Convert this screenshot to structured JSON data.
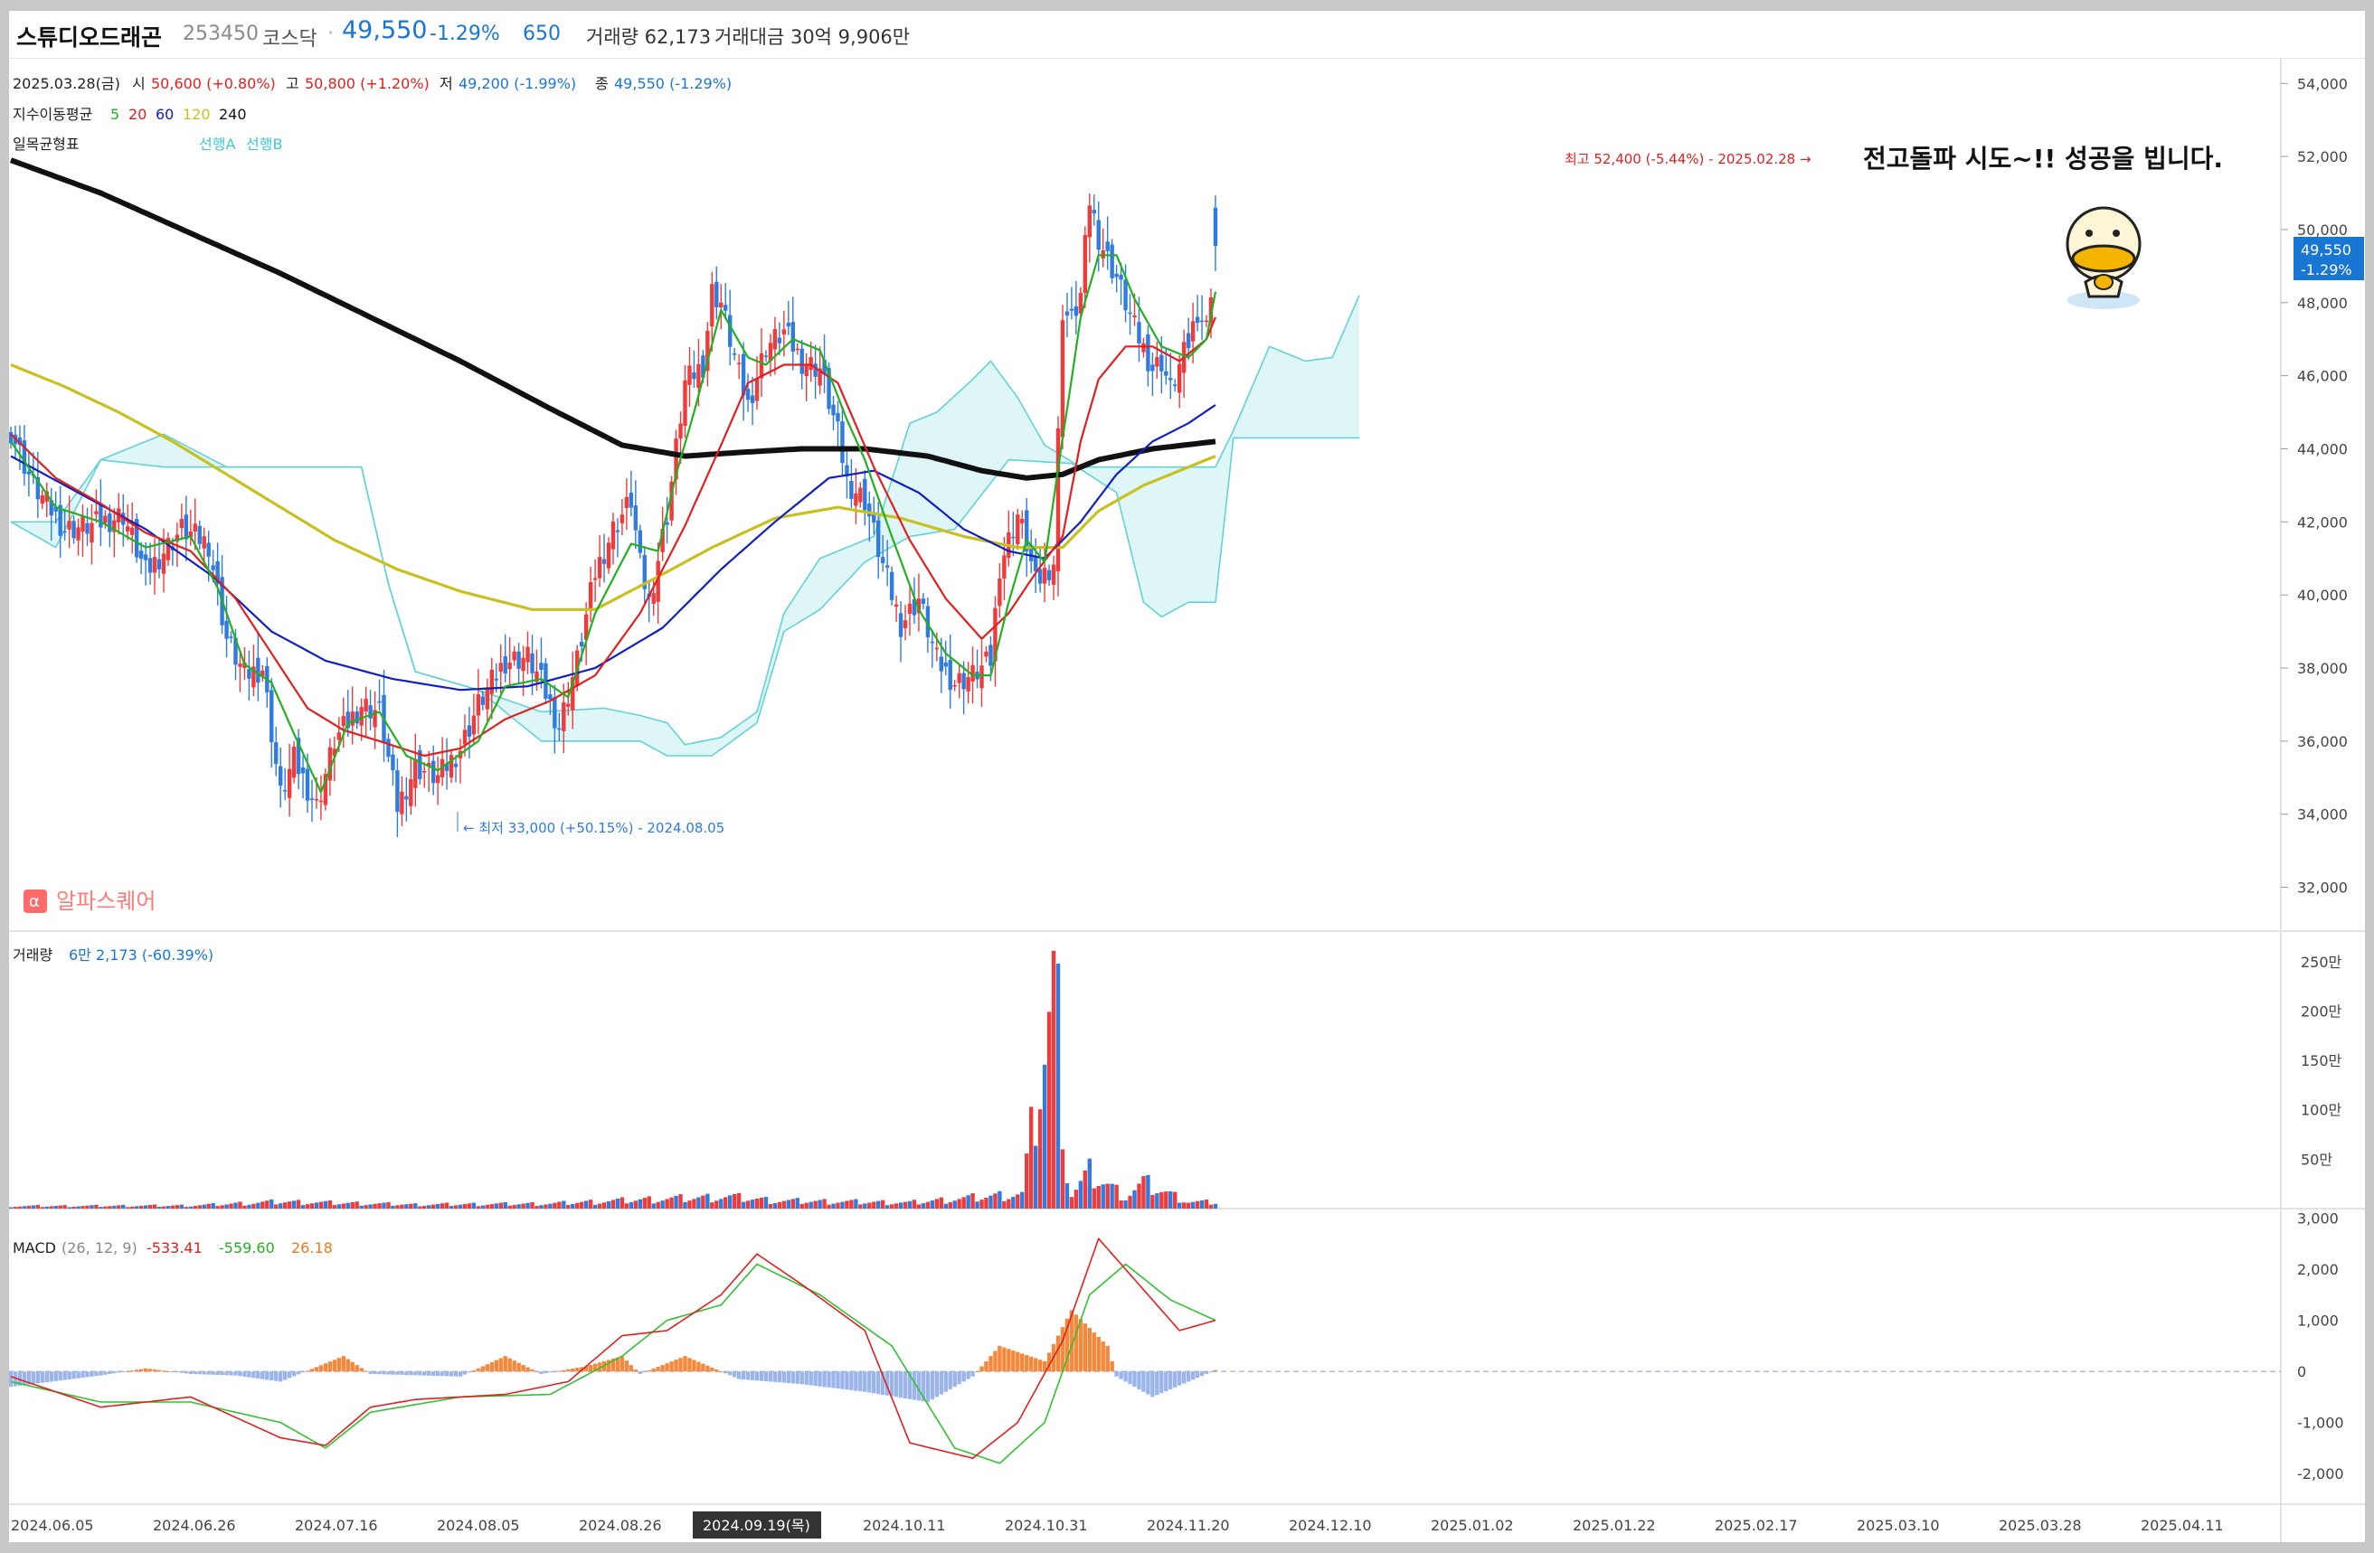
{
  "header": {
    "name": "스튜디오드래곤",
    "code": "253450",
    "market": "코스닥",
    "separator": "·",
    "price": "49,550",
    "change_pct": "-1.29%",
    "change": "650",
    "volume_label": "거래량 62,173",
    "amount_label": "거래대금 30억 9,906만"
  },
  "ohlc_legend": {
    "date": "2025.03.28(금)",
    "open_label": "시",
    "open_value": "50,600 (+0.80%)",
    "high_label": "고",
    "high_value": "50,800 (+1.20%)",
    "low_label": "저",
    "low_value": "49,200 (-1.99%)",
    "close_label": "종",
    "close_value": "49,550 (-1.29%)"
  },
  "ma_legend": {
    "label": "지수이동평균",
    "periods": [
      {
        "text": "5",
        "color": "#22b022"
      },
      {
        "text": "20",
        "color": "#e02020"
      },
      {
        "text": "60",
        "color": "#1020c0"
      },
      {
        "text": "120",
        "color": "#c8c020"
      },
      {
        "text": "240",
        "color": "#111111"
      }
    ]
  },
  "ichimoku_legend": {
    "label": "일목균형표",
    "span_a": "선행A",
    "span_b": "선행B"
  },
  "annotations": {
    "high_marker": "최고 52,400 (-5.44%) - 2025.02.28 →",
    "low_marker": "← 최저 33,000 (+50.15%) - 2024.08.05",
    "overlay_text": "전고돌파 시도~!! 성공을 빕니다.",
    "watermark_icon": "α",
    "watermark": "알파스퀘어"
  },
  "current_price_tag": {
    "price": "49,550",
    "pct": "-1.29%"
  },
  "volume_legend": {
    "label": "거래량",
    "value": "6만 2,173 (-60.39%)"
  },
  "macd_legend": {
    "label": "MACD",
    "params": "(26, 12, 9)",
    "macd": "-533.41",
    "signal": "-559.60",
    "hist": "26.18"
  },
  "crosshair_date": "2024.09.19(목)",
  "colors": {
    "up": "#ef3b3b",
    "down": "#2f7be0",
    "ma5": "#22b022",
    "ma20": "#e02020",
    "ma60": "#1020c0",
    "ma120": "#c8c020",
    "ma240": "#111111",
    "cloud_fill": "#d9f4f4",
    "cloud_line": "#62d2d8",
    "hist_up": "#f5883a",
    "hist_down": "#9bb5ea",
    "price_tag": "#1976d2"
  },
  "chart_data": {
    "type": "candlestick",
    "price_axis": {
      "ticks": [
        "54,000",
        "52,000",
        "50,000",
        "48,000",
        "46,000",
        "44,000",
        "42,000",
        "40,000",
        "38,000",
        "36,000",
        "34,000",
        "32,000"
      ],
      "ylim": [
        30800,
        54700
      ]
    },
    "volume_axis": {
      "ticks": [
        "250만",
        "200만",
        "150만",
        "100만",
        "50만"
      ],
      "ylim": [
        0,
        2700000
      ]
    },
    "macd_axis": {
      "ticks": [
        "3,000",
        "2,000",
        "1,000",
        "0",
        "-1,000",
        "-2,000"
      ],
      "ylim": [
        -2600,
        3100
      ]
    },
    "x_axis": {
      "dates": [
        "2024.06.05",
        "2024.06.26",
        "2024.07.16",
        "2024.08.05",
        "2024.08.26",
        "2024.09.19(목)",
        "2024.10.11",
        "2024.10.31",
        "2024.11.20",
        "2024.12.10",
        "2025.01.02",
        "2025.01.22",
        "2025.02.17",
        "2025.03.10",
        "2025.03.28",
        "2025.04.11"
      ]
    },
    "close_path": [
      [
        0,
        44500
      ],
      [
        5,
        43000
      ],
      [
        12,
        41800
      ],
      [
        18,
        41900
      ],
      [
        25,
        42200
      ],
      [
        30,
        40600
      ],
      [
        38,
        41800
      ],
      [
        44,
        41400
      ],
      [
        48,
        38800
      ],
      [
        52,
        37800
      ],
      [
        56,
        38000
      ],
      [
        60,
        34500
      ],
      [
        63,
        35500
      ],
      [
        68,
        34200
      ],
      [
        72,
        36000
      ],
      [
        78,
        37000
      ],
      [
        82,
        36800
      ],
      [
        86,
        34200
      ],
      [
        90,
        35300
      ],
      [
        95,
        35000
      ],
      [
        100,
        35800
      ],
      [
        104,
        37000
      ],
      [
        110,
        38200
      ],
      [
        115,
        38300
      ],
      [
        118,
        37600
      ],
      [
        122,
        36400
      ],
      [
        126,
        38200
      ],
      [
        130,
        40600
      ],
      [
        134,
        41800
      ],
      [
        138,
        42600
      ],
      [
        140,
        40800
      ],
      [
        142,
        39800
      ],
      [
        146,
        42200
      ],
      [
        150,
        45800
      ],
      [
        154,
        46300
      ],
      [
        156,
        48300
      ],
      [
        158,
        48000
      ],
      [
        162,
        46000
      ],
      [
        164,
        45200
      ],
      [
        168,
        46800
      ],
      [
        172,
        47200
      ],
      [
        176,
        46400
      ],
      [
        180,
        46200
      ],
      [
        184,
        44400
      ],
      [
        186,
        43100
      ],
      [
        190,
        42600
      ],
      [
        194,
        40800
      ],
      [
        198,
        39200
      ],
      [
        202,
        39900
      ],
      [
        206,
        38200
      ],
      [
        210,
        37600
      ],
      [
        214,
        37800
      ],
      [
        218,
        38200
      ],
      [
        220,
        40800
      ],
      [
        224,
        42200
      ],
      [
        226,
        41400
      ],
      [
        228,
        40300
      ],
      [
        232,
        40900
      ],
      [
        234,
        47800
      ],
      [
        236,
        47500
      ],
      [
        238,
        48200
      ],
      [
        240,
        50800
      ],
      [
        242,
        49800
      ],
      [
        244,
        49200
      ],
      [
        246,
        48700
      ],
      [
        250,
        47300
      ],
      [
        254,
        46200
      ],
      [
        256,
        46400
      ],
      [
        258,
        45600
      ],
      [
        262,
        46900
      ],
      [
        264,
        47800
      ],
      [
        266,
        47300
      ],
      [
        268,
        49550
      ]
    ],
    "ma5_path": [
      [
        0,
        44200
      ],
      [
        10,
        42400
      ],
      [
        20,
        42000
      ],
      [
        30,
        41300
      ],
      [
        40,
        41600
      ],
      [
        46,
        40200
      ],
      [
        52,
        38100
      ],
      [
        58,
        37600
      ],
      [
        63,
        36200
      ],
      [
        69,
        34600
      ],
      [
        75,
        36500
      ],
      [
        82,
        36800
      ],
      [
        88,
        35600
      ],
      [
        95,
        35200
      ],
      [
        104,
        36000
      ],
      [
        110,
        37500
      ],
      [
        118,
        37700
      ],
      [
        124,
        37200
      ],
      [
        130,
        39500
      ],
      [
        138,
        41400
      ],
      [
        144,
        41200
      ],
      [
        148,
        43300
      ],
      [
        152,
        45000
      ],
      [
        158,
        47800
      ],
      [
        164,
        46500
      ],
      [
        168,
        46300
      ],
      [
        174,
        47000
      ],
      [
        180,
        46700
      ],
      [
        186,
        44800
      ],
      [
        190,
        43700
      ],
      [
        196,
        41600
      ],
      [
        202,
        39600
      ],
      [
        208,
        38400
      ],
      [
        214,
        37800
      ],
      [
        218,
        37800
      ],
      [
        222,
        39800
      ],
      [
        226,
        41500
      ],
      [
        230,
        40900
      ],
      [
        234,
        44300
      ],
      [
        236,
        45900
      ],
      [
        238,
        47600
      ],
      [
        242,
        49300
      ],
      [
        246,
        49300
      ],
      [
        250,
        48100
      ],
      [
        256,
        46800
      ],
      [
        262,
        46500
      ],
      [
        266,
        47000
      ],
      [
        268,
        48300
      ]
    ],
    "ma20_path": [
      [
        0,
        44400
      ],
      [
        10,
        43200
      ],
      [
        20,
        42500
      ],
      [
        30,
        41700
      ],
      [
        40,
        41200
      ],
      [
        50,
        39900
      ],
      [
        58,
        38400
      ],
      [
        66,
        36900
      ],
      [
        74,
        36300
      ],
      [
        82,
        36000
      ],
      [
        92,
        35600
      ],
      [
        100,
        35800
      ],
      [
        110,
        36600
      ],
      [
        120,
        37100
      ],
      [
        130,
        37800
      ],
      [
        140,
        39500
      ],
      [
        150,
        41900
      ],
      [
        158,
        44100
      ],
      [
        164,
        45800
      ],
      [
        172,
        46300
      ],
      [
        178,
        46300
      ],
      [
        184,
        45800
      ],
      [
        192,
        43500
      ],
      [
        200,
        41500
      ],
      [
        208,
        39900
      ],
      [
        216,
        38800
      ],
      [
        222,
        39500
      ],
      [
        228,
        40600
      ],
      [
        234,
        41600
      ],
      [
        238,
        44200
      ],
      [
        242,
        45900
      ],
      [
        248,
        46800
      ],
      [
        254,
        46800
      ],
      [
        260,
        46400
      ],
      [
        266,
        47000
      ],
      [
        268,
        47600
      ]
    ],
    "ma60_path": [
      [
        0,
        43800
      ],
      [
        15,
        42800
      ],
      [
        30,
        41800
      ],
      [
        45,
        40500
      ],
      [
        58,
        39000
      ],
      [
        70,
        38200
      ],
      [
        85,
        37700
      ],
      [
        100,
        37400
      ],
      [
        115,
        37500
      ],
      [
        130,
        38000
      ],
      [
        145,
        39100
      ],
      [
        158,
        40700
      ],
      [
        170,
        42000
      ],
      [
        182,
        43200
      ],
      [
        192,
        43400
      ],
      [
        202,
        42800
      ],
      [
        212,
        41800
      ],
      [
        222,
        41200
      ],
      [
        230,
        41000
      ],
      [
        238,
        42000
      ],
      [
        246,
        43300
      ],
      [
        254,
        44200
      ],
      [
        262,
        44700
      ],
      [
        268,
        45200
      ]
    ],
    "ma120_path": [
      [
        0,
        46300
      ],
      [
        12,
        45700
      ],
      [
        24,
        45000
      ],
      [
        36,
        44200
      ],
      [
        48,
        43300
      ],
      [
        60,
        42400
      ],
      [
        72,
        41500
      ],
      [
        86,
        40700
      ],
      [
        100,
        40100
      ],
      [
        116,
        39600
      ],
      [
        130,
        39600
      ],
      [
        144,
        40500
      ],
      [
        156,
        41300
      ],
      [
        170,
        42100
      ],
      [
        184,
        42400
      ],
      [
        198,
        42100
      ],
      [
        212,
        41600
      ],
      [
        224,
        41300
      ],
      [
        234,
        41300
      ],
      [
        242,
        42300
      ],
      [
        252,
        43000
      ],
      [
        262,
        43500
      ],
      [
        268,
        43800
      ]
    ],
    "ma240_path": [
      [
        0,
        51900
      ],
      [
        20,
        51000
      ],
      [
        40,
        49900
      ],
      [
        60,
        48800
      ],
      [
        80,
        47600
      ],
      [
        100,
        46400
      ],
      [
        120,
        45100
      ],
      [
        136,
        44100
      ],
      [
        150,
        43800
      ],
      [
        162,
        43900
      ],
      [
        176,
        44000
      ],
      [
        190,
        44000
      ],
      [
        204,
        43800
      ],
      [
        216,
        43400
      ],
      [
        226,
        43200
      ],
      [
        234,
        43300
      ],
      [
        242,
        43700
      ],
      [
        254,
        44000
      ],
      [
        268,
        44200
      ]
    ],
    "span_a_path": [
      [
        0,
        42000
      ],
      [
        10,
        41300
      ],
      [
        20,
        43700
      ],
      [
        34,
        44400
      ],
      [
        48,
        43500
      ],
      [
        62,
        43500
      ],
      [
        78,
        43500
      ],
      [
        84,
        40300
      ],
      [
        90,
        37900
      ],
      [
        104,
        37400
      ],
      [
        118,
        36800
      ],
      [
        132,
        36900
      ],
      [
        140,
        36700
      ],
      [
        146,
        36500
      ],
      [
        150,
        35900
      ],
      [
        158,
        36100
      ],
      [
        166,
        36800
      ],
      [
        172,
        39500
      ],
      [
        180,
        41000
      ],
      [
        192,
        41600
      ],
      [
        200,
        44700
      ],
      [
        206,
        45000
      ],
      [
        214,
        45900
      ],
      [
        218,
        46400
      ],
      [
        224,
        45400
      ],
      [
        230,
        44100
      ],
      [
        238,
        43500
      ],
      [
        246,
        43500
      ],
      [
        254,
        43500
      ],
      [
        262,
        43500
      ],
      [
        268,
        43500
      ],
      [
        272,
        44500
      ],
      [
        280,
        46800
      ],
      [
        288,
        46400
      ],
      [
        294,
        46500
      ],
      [
        300,
        48200
      ]
    ],
    "span_b_path": [
      [
        0,
        42000
      ],
      [
        10,
        42000
      ],
      [
        20,
        43700
      ],
      [
        34,
        43500
      ],
      [
        48,
        43500
      ],
      [
        62,
        43500
      ],
      [
        78,
        43500
      ],
      [
        84,
        40300
      ],
      [
        90,
        37900
      ],
      [
        104,
        37400
      ],
      [
        118,
        36000
      ],
      [
        132,
        36000
      ],
      [
        140,
        36000
      ],
      [
        146,
        35600
      ],
      [
        156,
        35600
      ],
      [
        166,
        36500
      ],
      [
        172,
        39000
      ],
      [
        180,
        39600
      ],
      [
        190,
        40900
      ],
      [
        200,
        41600
      ],
      [
        210,
        41800
      ],
      [
        222,
        43700
      ],
      [
        236,
        43600
      ],
      [
        246,
        42800
      ],
      [
        252,
        39800
      ],
      [
        256,
        39400
      ],
      [
        262,
        39800
      ],
      [
        268,
        39800
      ],
      [
        272,
        44300
      ],
      [
        300,
        44300
      ]
    ],
    "volume_path": [
      [
        0,
        25000
      ],
      [
        40,
        30000
      ],
      [
        60,
        70000
      ],
      [
        90,
        40000
      ],
      [
        120,
        50000
      ],
      [
        140,
        90000
      ],
      [
        160,
        120000
      ],
      [
        170,
        80000
      ],
      [
        200,
        60000
      ],
      [
        225,
        150000
      ],
      [
        233,
        2480000
      ],
      [
        234,
        600000
      ],
      [
        236,
        140000
      ],
      [
        240,
        360000
      ],
      [
        248,
        120000
      ],
      [
        252,
        260000
      ],
      [
        262,
        70000
      ],
      [
        268,
        62173
      ]
    ],
    "macd_path": [
      [
        0,
        -100
      ],
      [
        20,
        -700
      ],
      [
        40,
        -500
      ],
      [
        50,
        -900
      ],
      [
        60,
        -1300
      ],
      [
        70,
        -1450
      ],
      [
        80,
        -700
      ],
      [
        90,
        -550
      ],
      [
        110,
        -450
      ],
      [
        124,
        -200
      ],
      [
        136,
        700
      ],
      [
        146,
        800
      ],
      [
        158,
        1500
      ],
      [
        166,
        2300
      ],
      [
        176,
        1700
      ],
      [
        190,
        800
      ],
      [
        200,
        -1400
      ],
      [
        214,
        -1700
      ],
      [
        224,
        -1000
      ],
      [
        234,
        600
      ],
      [
        242,
        2600
      ],
      [
        250,
        1800
      ],
      [
        260,
        800
      ],
      [
        268,
        1000
      ]
    ],
    "signal_path": [
      [
        0,
        -200
      ],
      [
        20,
        -600
      ],
      [
        40,
        -600
      ],
      [
        60,
        -1000
      ],
      [
        70,
        -1500
      ],
      [
        80,
        -800
      ],
      [
        100,
        -500
      ],
      [
        120,
        -450
      ],
      [
        136,
        300
      ],
      [
        146,
        1000
      ],
      [
        158,
        1300
      ],
      [
        166,
        2100
      ],
      [
        180,
        1500
      ],
      [
        196,
        500
      ],
      [
        210,
        -1500
      ],
      [
        220,
        -1800
      ],
      [
        230,
        -1000
      ],
      [
        240,
        1500
      ],
      [
        248,
        2100
      ],
      [
        258,
        1400
      ],
      [
        268,
        1000
      ]
    ],
    "hist_path": [
      [
        0,
        -300
      ],
      [
        20,
        -80
      ],
      [
        30,
        60
      ],
      [
        40,
        -50
      ],
      [
        50,
        -80
      ],
      [
        60,
        -200
      ],
      [
        74,
        300
      ],
      [
        80,
        -50
      ],
      [
        100,
        -100
      ],
      [
        110,
        300
      ],
      [
        118,
        -50
      ],
      [
        128,
        100
      ],
      [
        136,
        300
      ],
      [
        140,
        -50
      ],
      [
        150,
        300
      ],
      [
        162,
        -150
      ],
      [
        176,
        -250
      ],
      [
        190,
        -400
      ],
      [
        204,
        -600
      ],
      [
        214,
        -100
      ],
      [
        220,
        500
      ],
      [
        230,
        200
      ],
      [
        236,
        1200
      ],
      [
        244,
        500
      ],
      [
        246,
        -100
      ],
      [
        254,
        -500
      ],
      [
        262,
        -200
      ],
      [
        268,
        26
      ]
    ]
  }
}
